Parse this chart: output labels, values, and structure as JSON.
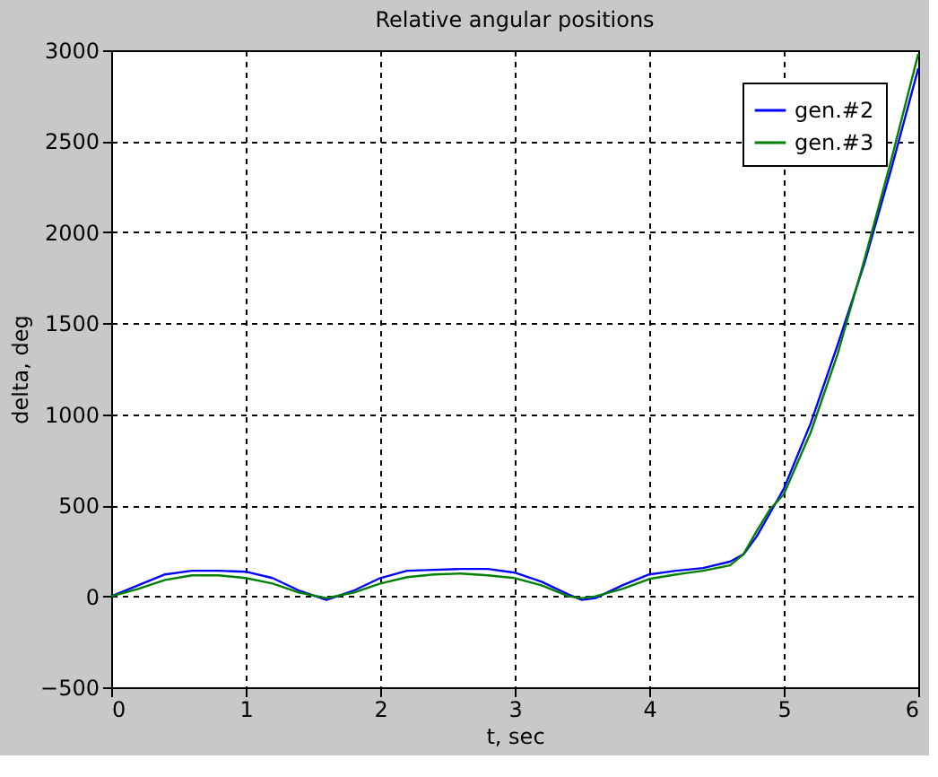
{
  "chart_data": {
    "type": "line",
    "title": "Relative angular positions",
    "xlabel": "t, sec",
    "ylabel": "delta, deg",
    "x": [
      0,
      0.2,
      0.4,
      0.6,
      0.8,
      1.0,
      1.2,
      1.4,
      1.6,
      1.8,
      2.0,
      2.2,
      2.4,
      2.6,
      2.8,
      3.0,
      3.2,
      3.4,
      3.5,
      3.6,
      3.8,
      4.0,
      4.2,
      4.4,
      4.6,
      4.7,
      4.8,
      4.9,
      5.0,
      5.2,
      5.4,
      5.6,
      5.8,
      6.0
    ],
    "series": [
      {
        "name": "gen.#2",
        "color": "#0000ff",
        "values": [
          0,
          60,
          120,
          140,
          140,
          135,
          100,
          30,
          -20,
          30,
          100,
          140,
          145,
          150,
          150,
          130,
          80,
          10,
          -20,
          -10,
          60,
          120,
          140,
          155,
          190,
          230,
          330,
          460,
          590,
          950,
          1380,
          1830,
          2350,
          2900
        ]
      },
      {
        "name": "gen.#3",
        "color": "#008000",
        "values": [
          0,
          40,
          90,
          115,
          115,
          100,
          70,
          20,
          -10,
          20,
          70,
          105,
          120,
          125,
          115,
          100,
          60,
          0,
          -10,
          0,
          40,
          95,
          120,
          140,
          170,
          230,
          360,
          480,
          560,
          900,
          1330,
          1850,
          2400,
          2980
        ]
      }
    ],
    "xlim": [
      0,
      6
    ],
    "xticks": [
      0,
      1,
      2,
      3,
      4,
      5,
      6
    ],
    "ylim": [
      -500,
      3000
    ],
    "yticks": [
      -500,
      0,
      500,
      1000,
      1500,
      2000,
      2500,
      3000
    ],
    "grid": true,
    "legend": "top right",
    "line_style": "solid",
    "marker": "none"
  }
}
